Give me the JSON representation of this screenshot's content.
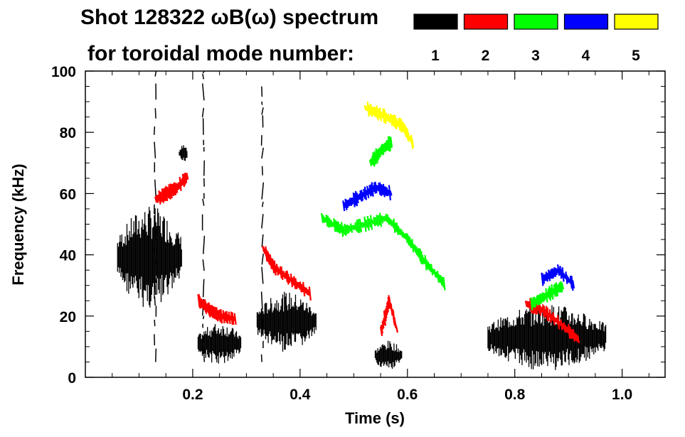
{
  "chart_data": {
    "type": "heatmap",
    "title_line1": "Shot 128322 ωB(ω) spectrum",
    "title_line2": "for toroidal mode number:",
    "xlabel": "Time (s)",
    "ylabel": "Frequency (kHz)",
    "xlim": [
      0.0,
      1.08
    ],
    "ylim": [
      0,
      100
    ],
    "xticks": [
      0.2,
      0.4,
      0.6,
      0.8,
      1.0
    ],
    "xtick_labels": [
      "0.2",
      "0.4",
      "0.6",
      "0.8",
      "1.0"
    ],
    "yticks": [
      0,
      20,
      40,
      60,
      80,
      100
    ],
    "ytick_labels": [
      "0",
      "20",
      "40",
      "60",
      "80",
      "100"
    ],
    "legend_position": "top-right",
    "legend": [
      {
        "n": "1",
        "color": "#000000"
      },
      {
        "n": "2",
        "color": "#ff0000"
      },
      {
        "n": "3",
        "color": "#00ff00"
      },
      {
        "n": "4",
        "color": "#0000ff"
      },
      {
        "n": "5",
        "color": "#ffff00"
      }
    ],
    "features": [
      {
        "mode": "1",
        "t": [
          0.06,
          0.18
        ],
        "f": [
          22,
          56
        ],
        "kind": "burst"
      },
      {
        "mode": "1",
        "t": [
          0.175,
          0.19
        ],
        "f": [
          70,
          76
        ],
        "kind": "burst"
      },
      {
        "mode": "1",
        "t": [
          0.21,
          0.29
        ],
        "f": [
          4,
          18
        ],
        "kind": "burst"
      },
      {
        "mode": "1",
        "t": [
          0.32,
          0.43
        ],
        "f": [
          8,
          28
        ],
        "kind": "burst"
      },
      {
        "mode": "1",
        "t": [
          0.54,
          0.59
        ],
        "f": [
          2,
          12
        ],
        "kind": "burst"
      },
      {
        "mode": "1",
        "t": [
          0.75,
          0.97
        ],
        "f": [
          2,
          24
        ],
        "kind": "burst"
      },
      {
        "mode": "1",
        "t": [
          0.125,
          0.135
        ],
        "f": [
          5,
          100
        ],
        "kind": "vline"
      },
      {
        "mode": "1",
        "t": [
          0.215,
          0.225
        ],
        "f": [
          5,
          100
        ],
        "kind": "vline"
      },
      {
        "mode": "1",
        "t": [
          0.325,
          0.335
        ],
        "f": [
          5,
          95
        ],
        "kind": "vline"
      },
      {
        "mode": "2",
        "t": [
          0.13,
          0.19
        ],
        "f": [
          [
            0.13,
            58
          ],
          [
            0.15,
            60
          ],
          [
            0.17,
            62
          ],
          [
            0.19,
            66
          ]
        ],
        "kind": "curve"
      },
      {
        "mode": "2",
        "t": [
          0.21,
          0.28
        ],
        "f": [
          [
            0.21,
            25
          ],
          [
            0.23,
            22
          ],
          [
            0.25,
            20
          ],
          [
            0.28,
            19
          ]
        ],
        "kind": "curve"
      },
      {
        "mode": "2",
        "t": [
          0.33,
          0.42
        ],
        "f": [
          [
            0.33,
            42
          ],
          [
            0.35,
            36
          ],
          [
            0.38,
            32
          ],
          [
            0.42,
            27
          ]
        ],
        "kind": "curve"
      },
      {
        "mode": "2",
        "t": [
          0.55,
          0.58
        ],
        "f": [
          [
            0.55,
            15
          ],
          [
            0.565,
            25
          ],
          [
            0.58,
            15
          ]
        ],
        "kind": "curve"
      },
      {
        "mode": "2",
        "t": [
          0.82,
          0.92
        ],
        "f": [
          [
            0.82,
            24
          ],
          [
            0.85,
            22
          ],
          [
            0.88,
            18
          ],
          [
            0.92,
            12
          ]
        ],
        "kind": "curve"
      },
      {
        "mode": "3",
        "t": [
          0.44,
          0.67
        ],
        "f": [
          [
            0.44,
            52
          ],
          [
            0.48,
            48
          ],
          [
            0.52,
            50
          ],
          [
            0.56,
            52
          ],
          [
            0.6,
            45
          ],
          [
            0.63,
            38
          ],
          [
            0.67,
            30
          ]
        ],
        "kind": "curve"
      },
      {
        "mode": "3",
        "t": [
          0.53,
          0.57
        ],
        "f": [
          [
            0.53,
            70
          ],
          [
            0.55,
            74
          ],
          [
            0.57,
            77
          ]
        ],
        "kind": "curve"
      },
      {
        "mode": "3",
        "t": [
          0.83,
          0.89
        ],
        "f": [
          [
            0.83,
            24
          ],
          [
            0.86,
            27
          ],
          [
            0.89,
            30
          ]
        ],
        "kind": "curve"
      },
      {
        "mode": "4",
        "t": [
          0.48,
          0.57
        ],
        "f": [
          [
            0.48,
            56
          ],
          [
            0.51,
            59
          ],
          [
            0.54,
            62
          ],
          [
            0.57,
            60
          ]
        ],
        "kind": "curve"
      },
      {
        "mode": "4",
        "t": [
          0.85,
          0.91
        ],
        "f": [
          [
            0.85,
            32
          ],
          [
            0.88,
            35
          ],
          [
            0.91,
            30
          ]
        ],
        "kind": "curve"
      },
      {
        "mode": "5",
        "t": [
          0.52,
          0.61
        ],
        "f": [
          [
            0.52,
            88
          ],
          [
            0.56,
            85
          ],
          [
            0.59,
            82
          ],
          [
            0.61,
            76
          ]
        ],
        "kind": "curve"
      }
    ]
  }
}
